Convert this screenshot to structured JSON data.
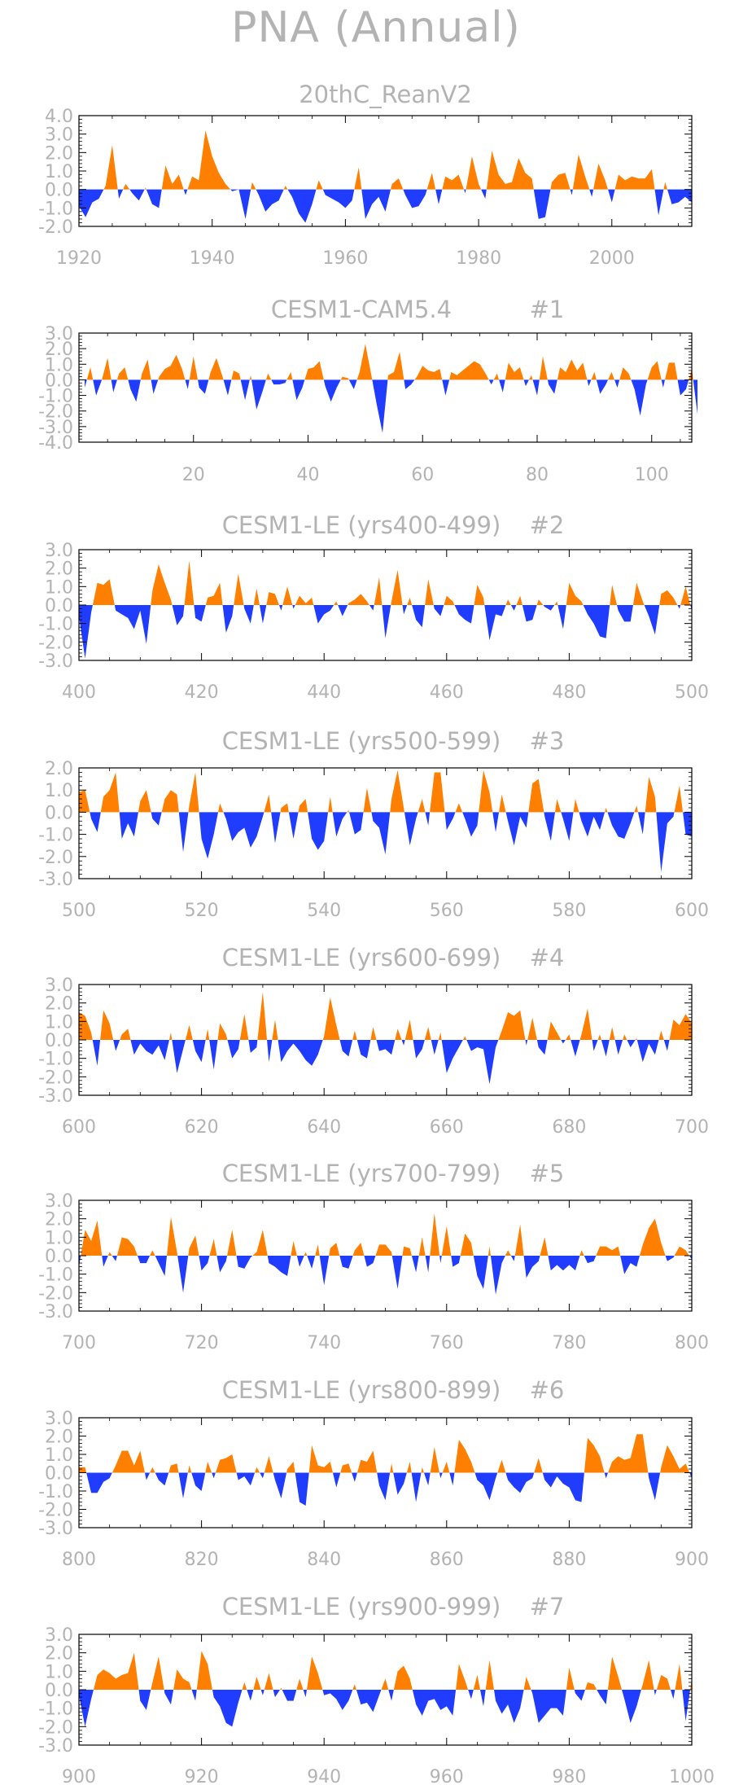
{
  "figure": {
    "title": "PNA (Annual)",
    "colors": {
      "positive": "#ff8000",
      "negative": "#1f3cff",
      "text": "#b3b3b3",
      "axis": "#000000"
    }
  },
  "chart_data": [
    {
      "type": "area",
      "title": "20thC_ReanV2",
      "x_start": 1920,
      "x_step": 1,
      "xlim": [
        1920,
        2012
      ],
      "ylim": [
        -2.0,
        4.0
      ],
      "xticks": [
        1920,
        1940,
        1960,
        1980,
        2000
      ],
      "yticks": [
        -2.0,
        -1.0,
        0.0,
        1.0,
        2.0,
        3.0,
        4.0
      ],
      "values": [
        -0.9,
        -1.5,
        -0.7,
        -0.5,
        0.2,
        2.4,
        -0.5,
        0.3,
        -0.2,
        -0.6,
        0.1,
        -0.8,
        -1.0,
        1.3,
        0.3,
        0.8,
        -0.3,
        0.7,
        0.5,
        3.2,
        1.8,
        0.9,
        0.3,
        -0.1,
        0.0,
        -1.6,
        0.4,
        -0.3,
        -1.2,
        -0.8,
        -0.6,
        0.2,
        -0.4,
        -1.3,
        -1.8,
        -0.8,
        0.5,
        -0.3,
        -0.5,
        -0.7,
        -1.0,
        -0.6,
        1.2,
        -1.6,
        -0.8,
        -0.4,
        -1.2,
        0.3,
        0.6,
        -0.3,
        -1.0,
        -0.9,
        -0.3,
        0.9,
        -0.8,
        0.7,
        0.5,
        0.8,
        -0.2,
        1.8,
        0.3,
        -0.5,
        2.1,
        0.8,
        0.3,
        0.4,
        1.7,
        0.9,
        0.6,
        -1.6,
        -1.5,
        0.4,
        0.8,
        0.9,
        -0.3,
        1.9,
        0.7,
        -0.4,
        1.4,
        0.5,
        -0.7,
        0.8,
        0.5,
        0.7,
        0.6,
        0.6,
        1.1,
        -1.4,
        0.4,
        -0.8,
        -0.7,
        -0.4,
        -0.7
      ]
    },
    {
      "type": "area",
      "title": "CESM1-CAM5.4",
      "member_label": "#1",
      "x_start": 1,
      "x_step": 1,
      "xlim": [
        0,
        107
      ],
      "ylim": [
        -4.0,
        3.0
      ],
      "xticks": [
        20,
        40,
        60,
        80,
        100
      ],
      "yticks": [
        -4.0,
        -3.0,
        -2.0,
        -1.0,
        0.0,
        1.0,
        2.0,
        3.0
      ],
      "values": [
        -0.5,
        0.8,
        -1.0,
        0.0,
        1.4,
        -0.8,
        0.4,
        0.8,
        -0.6,
        -1.4,
        0.4,
        1.3,
        -0.9,
        0.2,
        0.7,
        0.9,
        1.6,
        0.7,
        -0.6,
        1.5,
        -0.5,
        -0.9,
        0.5,
        1.4,
        0.3,
        -1.0,
        0.6,
        0.4,
        -1.3,
        0.3,
        -1.9,
        -0.8,
        0.4,
        -0.3,
        -0.3,
        -0.2,
        0.5,
        -1.3,
        -0.5,
        0.7,
        0.8,
        1.2,
        -0.4,
        -1.4,
        -0.5,
        0.2,
        0.1,
        -0.6,
        0.5,
        2.3,
        0.4,
        -1.6,
        -3.4,
        0.3,
        0.5,
        1.8,
        -0.6,
        -0.3,
        0.2,
        0.9,
        0.6,
        0.5,
        0.7,
        -1.0,
        0.5,
        0.3,
        0.6,
        0.9,
        1.2,
        1.0,
        0.4,
        -0.3,
        0.4,
        -0.8,
        1.1,
        0.5,
        0.8,
        -0.4,
        0.3,
        -1.0,
        1.5,
        -0.3,
        -0.9,
        0.8,
        0.5,
        1.3,
        0.6,
        1.1,
        -0.4,
        0.5,
        -0.9,
        -0.3,
        0.5,
        -0.5,
        0.8,
        0.4,
        -0.6,
        -2.3,
        -0.3,
        0.8,
        1.2,
        -0.5,
        1.1,
        1.1,
        -1.0,
        -0.6,
        0.7,
        -2.2
      ]
    },
    {
      "type": "area",
      "title": "CESM1-LE (yrs400-499)",
      "member_label": "#2",
      "x_start": 400,
      "x_step": 1,
      "xlim": [
        400,
        500
      ],
      "ylim": [
        -3.0,
        3.0
      ],
      "xticks": [
        400,
        420,
        440,
        460,
        480,
        500
      ],
      "yticks": [
        -3.0,
        -2.0,
        -1.0,
        0.0,
        1.0,
        2.0,
        3.0
      ],
      "values": [
        -0.6,
        -2.9,
        -0.4,
        1.2,
        1.1,
        1.4,
        -0.3,
        -0.5,
        -0.7,
        -1.3,
        -0.3,
        -2.1,
        0.8,
        2.2,
        1.2,
        0.3,
        -1.1,
        -0.6,
        2.4,
        -0.7,
        -0.9,
        0.4,
        0.5,
        1.2,
        -1.5,
        -0.6,
        1.7,
        -0.2,
        -1.0,
        0.9,
        -1.0,
        0.7,
        0.6,
        -0.3,
        1.0,
        -0.2,
        0.5,
        0.1,
        0.4,
        -1.0,
        -0.5,
        -0.3,
        0.2,
        -0.6,
        0.1,
        0.3,
        0.6,
        0.2,
        -0.3,
        1.5,
        -1.8,
        0.2,
        1.9,
        -0.5,
        0.4,
        -0.8,
        -1.2,
        1.4,
        -0.2,
        -0.6,
        0.5,
        0.2,
        -0.5,
        -0.8,
        -1.0,
        1.1,
        0.4,
        -1.9,
        -0.5,
        -0.6,
        0.3,
        -0.3,
        0.5,
        -0.9,
        -0.8,
        0.3,
        -0.1,
        -0.3,
        0.2,
        -1.3,
        1.2,
        0.5,
        0.2,
        -0.5,
        -1.0,
        -1.7,
        -1.8,
        1.1,
        -0.3,
        -0.9,
        -0.9,
        1.2,
        0.2,
        -0.6,
        -1.6,
        0.6,
        0.8,
        0.4,
        -0.2,
        1.0,
        -0.3
      ]
    },
    {
      "type": "area",
      "title": "CESM1-LE (yrs500-599)",
      "member_label": "#3",
      "x_start": 500,
      "x_step": 1,
      "xlim": [
        500,
        600
      ],
      "ylim": [
        -3.0,
        2.0
      ],
      "xticks": [
        500,
        520,
        540,
        560,
        580,
        600
      ],
      "yticks": [
        -3.0,
        -2.0,
        -1.0,
        0.0,
        1.0,
        2.0
      ],
      "values": [
        0.9,
        1.0,
        -0.3,
        -0.9,
        0.7,
        1.0,
        1.8,
        -1.2,
        -0.5,
        -1.1,
        0.5,
        1.0,
        -0.3,
        -0.6,
        0.6,
        1.0,
        0.8,
        -1.8,
        0.3,
        1.8,
        -1.2,
        -2.1,
        -1.0,
        0.4,
        -0.3,
        -1.3,
        -0.9,
        -0.7,
        -1.6,
        -1.1,
        -0.2,
        0.8,
        -1.4,
        0.2,
        0.4,
        -1.2,
        0.3,
        0.6,
        -1.2,
        -1.7,
        -1.3,
        0.7,
        -1.1,
        -0.3,
        0.1,
        -1.0,
        -0.8,
        1.1,
        -0.4,
        -0.7,
        -1.9,
        0.6,
        1.9,
        0.2,
        -1.5,
        -0.3,
        0.6,
        -0.6,
        1.8,
        1.8,
        -0.8,
        -0.3,
        0.4,
        -0.3,
        -1.1,
        -0.6,
        1.9,
        0.9,
        -0.9,
        0.8,
        -0.4,
        -1.5,
        -0.2,
        -0.7,
        1.3,
        1.5,
        -0.2,
        -1.3,
        0.6,
        -0.3,
        -1.3,
        0.6,
        -0.4,
        -1.1,
        -0.2,
        -0.8,
        0.2,
        -0.6,
        -1.1,
        -1.2,
        -0.5,
        0.3,
        -1.0,
        1.6,
        0.7,
        -2.7,
        -0.5,
        -0.2,
        1.2,
        -1.0,
        -1.1
      ]
    },
    {
      "type": "area",
      "title": "CESM1-LE (yrs600-699)",
      "member_label": "#4",
      "x_start": 600,
      "x_step": 1,
      "xlim": [
        600,
        700
      ],
      "ylim": [
        -3.0,
        3.0
      ],
      "xticks": [
        600,
        620,
        640,
        660,
        680,
        700
      ],
      "yticks": [
        -3.0,
        -2.0,
        -1.0,
        0.0,
        1.0,
        2.0,
        3.0
      ],
      "values": [
        1.5,
        1.3,
        0.4,
        -1.4,
        1.6,
        0.9,
        -0.6,
        0.3,
        0.6,
        -0.8,
        -0.2,
        -0.6,
        -0.8,
        -0.3,
        -1.1,
        0.4,
        -1.8,
        -0.5,
        0.8,
        -0.6,
        -1.2,
        0.6,
        -1.6,
        0.9,
        0.3,
        -1.0,
        -0.5,
        1.4,
        -0.7,
        -0.4,
        2.6,
        -1.2,
        1.1,
        -1.2,
        -0.6,
        -0.2,
        -0.6,
        -1.1,
        -1.4,
        -0.8,
        0.2,
        2.3,
        0.8,
        -0.6,
        -0.9,
        0.5,
        -0.8,
        -1.0,
        0.7,
        -0.6,
        -0.5,
        -0.8,
        0.6,
        -0.3,
        1.1,
        -1.0,
        -0.5,
        0.7,
        -0.8,
        0.4,
        -1.8,
        -1.0,
        -0.4,
        0.2,
        -0.6,
        -0.4,
        -0.5,
        -2.4,
        -0.4,
        0.5,
        1.5,
        1.3,
        1.6,
        -0.3,
        1.2,
        -0.4,
        -0.8,
        1.0,
        0.4,
        -0.2,
        0.3,
        -0.9,
        0.3,
        1.7,
        -0.6,
        0.3,
        -0.9,
        0.7,
        -0.8,
        0.3,
        -0.4,
        0.1,
        -1.2,
        -0.2,
        -0.8,
        0.5,
        -0.6,
        1.1,
        0.8,
        1.4,
        0.9
      ]
    },
    {
      "type": "area",
      "title": "CESM1-LE (yrs700-799)",
      "member_label": "#5",
      "x_start": 700,
      "x_step": 1,
      "xlim": [
        700,
        800
      ],
      "ylim": [
        -3.0,
        3.0
      ],
      "xticks": [
        700,
        720,
        740,
        760,
        780,
        800
      ],
      "yticks": [
        -3.0,
        -2.0,
        -1.0,
        0.0,
        1.0,
        2.0,
        3.0
      ],
      "values": [
        -0.6,
        1.4,
        0.8,
        1.9,
        -0.6,
        0.2,
        -0.3,
        1.0,
        0.9,
        0.5,
        -0.4,
        -0.4,
        0.3,
        -0.4,
        -1.1,
        2.1,
        0.2,
        -2.0,
        0.4,
        1.1,
        -0.8,
        -0.4,
        0.9,
        -0.9,
        -0.3,
        1.4,
        -0.6,
        -0.7,
        -0.1,
        0.2,
        1.4,
        -0.4,
        -0.6,
        -0.9,
        -1.1,
        0.8,
        -0.6,
        0.2,
        -0.7,
        0.6,
        -1.6,
        0.4,
        0.7,
        -0.6,
        -0.7,
        0.3,
        0.7,
        -0.6,
        -0.4,
        0.6,
        0.6,
        0.2,
        -1.8,
        0.5,
        0.4,
        -0.9,
        1.0,
        -0.9,
        2.3,
        -0.4,
        1.6,
        -0.6,
        -0.4,
        1.2,
        0.7,
        -1.1,
        -1.8,
        0.5,
        -2.1,
        -0.4,
        0.3,
        -0.3,
        1.7,
        -1.2,
        -0.6,
        -0.3,
        1.0,
        -0.8,
        -0.5,
        -0.8,
        -0.5,
        -0.8,
        0.3,
        -0.4,
        -0.3,
        0.5,
        0.5,
        0.3,
        0.5,
        -1.0,
        -0.4,
        -0.6,
        0.6,
        1.5,
        2.0,
        0.7,
        -0.3,
        -0.1,
        0.5,
        0.3,
        -0.2
      ]
    },
    {
      "type": "area",
      "title": "CESM1-LE (yrs800-899)",
      "member_label": "#6",
      "x_start": 800,
      "x_step": 1,
      "xlim": [
        800,
        900
      ],
      "ylim": [
        -3.0,
        3.0
      ],
      "xticks": [
        800,
        820,
        840,
        860,
        880,
        900
      ],
      "yticks": [
        -3.0,
        -2.0,
        -1.0,
        0.0,
        1.0,
        2.0,
        3.0
      ],
      "values": [
        0.3,
        0.3,
        -1.1,
        -1.1,
        -0.5,
        -0.3,
        0.4,
        1.2,
        1.2,
        0.4,
        1.2,
        -0.4,
        0.3,
        -0.4,
        -0.7,
        0.4,
        0.5,
        -1.4,
        0.4,
        -0.7,
        -1.0,
        0.6,
        -0.3,
        0.7,
        0.8,
        1.0,
        -0.4,
        -0.2,
        -0.7,
        0.3,
        -0.3,
        0.9,
        -0.4,
        -1.4,
        0.2,
        0.6,
        -1.6,
        -1.8,
        1.5,
        0.4,
        0.3,
        0.6,
        -0.8,
        0.4,
        0.5,
        -0.5,
        0.7,
        0.6,
        1.2,
        -0.7,
        -1.5,
        0.5,
        -1.2,
        -0.6,
        0.6,
        -1.6,
        0.3,
        -0.7,
        1.4,
        -0.3,
        0.6,
        -0.7,
        1.8,
        1.3,
        0.6,
        -0.4,
        -0.7,
        -1.5,
        -0.3,
        0.7,
        -0.4,
        -0.8,
        -1.1,
        -0.5,
        -0.3,
        0.8,
        -0.4,
        -0.8,
        -0.2,
        -0.6,
        -0.8,
        -1.5,
        -1.6,
        1.9,
        1.5,
        0.9,
        -0.3,
        0.6,
        0.9,
        0.7,
        0.8,
        2.1,
        2.1,
        -0.3,
        -1.5,
        0.3,
        1.5,
        0.9,
        0.2,
        0.5,
        -0.3
      ]
    },
    {
      "type": "area",
      "title": "CESM1-LE (yrs900-999)",
      "member_label": "#7",
      "x_start": 900,
      "x_step": 1,
      "xlim": [
        900,
        1000
      ],
      "ylim": [
        -3.0,
        3.0
      ],
      "xticks": [
        900,
        920,
        940,
        960,
        980,
        1000
      ],
      "yticks": [
        -3.0,
        -2.0,
        -1.0,
        0.0,
        1.0,
        2.0,
        3.0
      ],
      "values": [
        -0.3,
        -2.0,
        -0.5,
        0.8,
        1.1,
        0.9,
        0.6,
        0.8,
        0.9,
        2.0,
        -0.6,
        -1.1,
        0.4,
        1.8,
        -0.2,
        -0.8,
        1.1,
        0.6,
        0.4,
        -0.6,
        2.1,
        1.4,
        -0.4,
        -0.9,
        -1.8,
        -2.0,
        -0.7,
        0.4,
        -0.6,
        0.7,
        -0.3,
        0.9,
        -0.4,
        0.1,
        -0.6,
        -0.6,
        0.6,
        -0.4,
        1.8,
        0.9,
        -0.3,
        -0.2,
        -0.5,
        -1.1,
        -0.6,
        0.3,
        -0.8,
        -0.7,
        -1.2,
        -0.3,
        0.6,
        -0.6,
        1.0,
        1.3,
        0.6,
        -0.8,
        -1.4,
        -0.6,
        -0.5,
        -1.1,
        -0.9,
        -1.4,
        1.4,
        0.5,
        -0.5,
        0.8,
        -0.9,
        1.6,
        -0.6,
        -1.3,
        -0.8,
        -1.8,
        -1.0,
        0.7,
        -0.2,
        -1.8,
        -1.4,
        -1.0,
        -1.0,
        -1.4,
        1.2,
        -0.2,
        -0.6,
        0.4,
        0.3,
        -0.3,
        -0.8,
        1.8,
        0.7,
        -0.5,
        -1.8,
        -0.9,
        0.3,
        1.6,
        -0.3,
        0.8,
        0.6,
        -0.5,
        1.4,
        -1.7,
        0.6
      ]
    }
  ]
}
